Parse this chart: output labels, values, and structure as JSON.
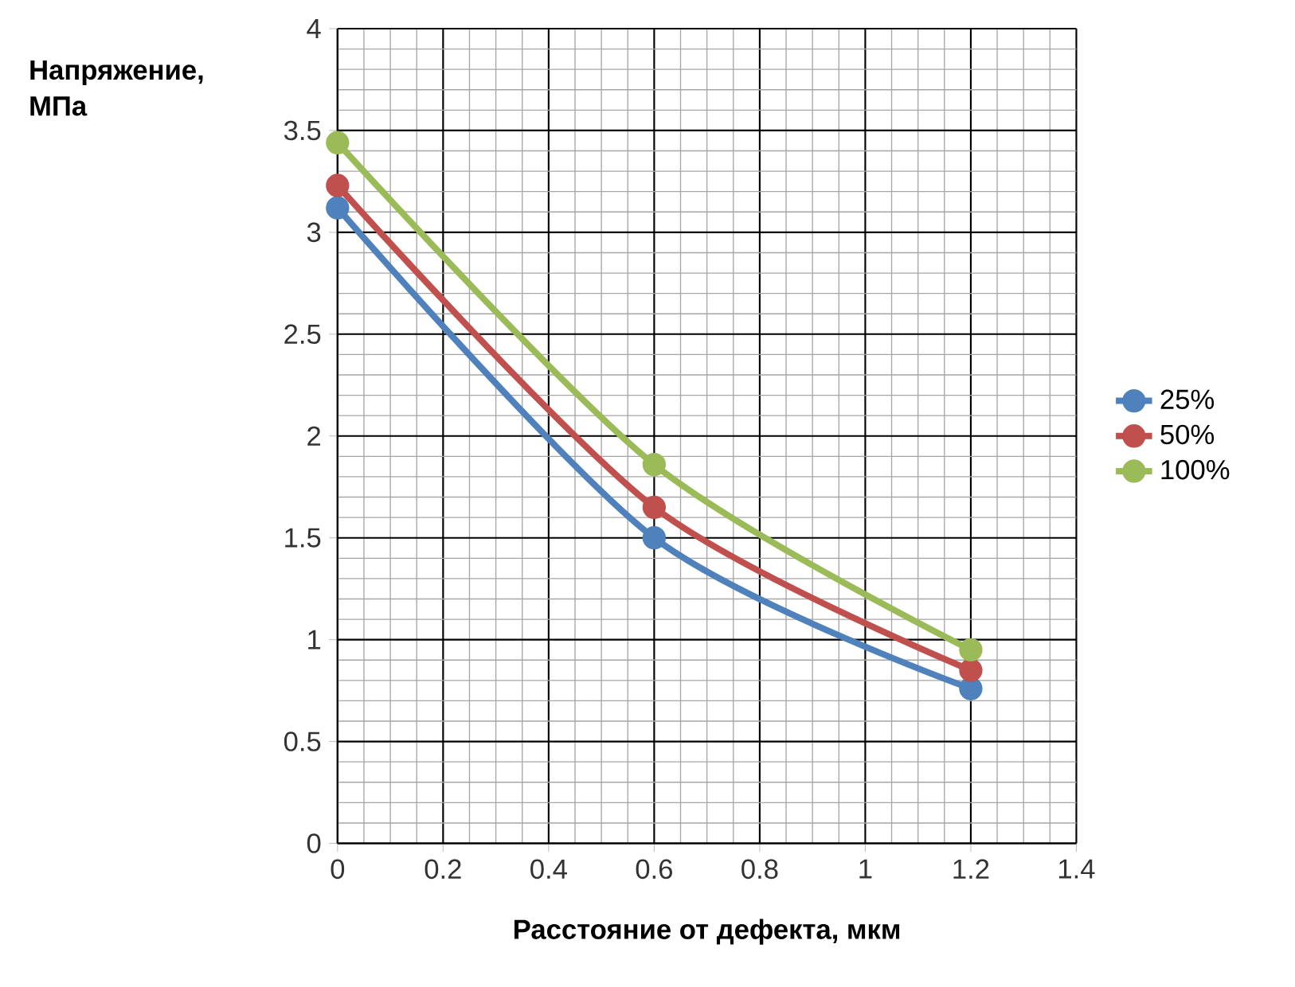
{
  "chart_data": {
    "type": "line",
    "xlabel": "Расстояние от дефекта, мкм",
    "ylabel": "Напряжение, МПа",
    "x": [
      0,
      0.6,
      1.2
    ],
    "series": [
      {
        "name": "25%",
        "color": "#4f81bd",
        "values": [
          3.12,
          1.5,
          0.76
        ]
      },
      {
        "name": "50%",
        "color": "#c0504d",
        "values": [
          3.23,
          1.65,
          0.85
        ]
      },
      {
        "name": "100%",
        "color": "#9bbb59",
        "values": [
          3.44,
          1.86,
          0.95
        ]
      }
    ],
    "xlim": [
      0,
      1.4
    ],
    "xticks": [
      0,
      0.2,
      0.4,
      0.6,
      0.8,
      1,
      1.2,
      1.4
    ],
    "ylim": [
      0,
      4
    ],
    "yticks": [
      0,
      0.5,
      1,
      1.5,
      2,
      2.5,
      3,
      3.5,
      4
    ],
    "grid": true,
    "legend": "right",
    "marker": "circle",
    "line_style": "solid"
  }
}
